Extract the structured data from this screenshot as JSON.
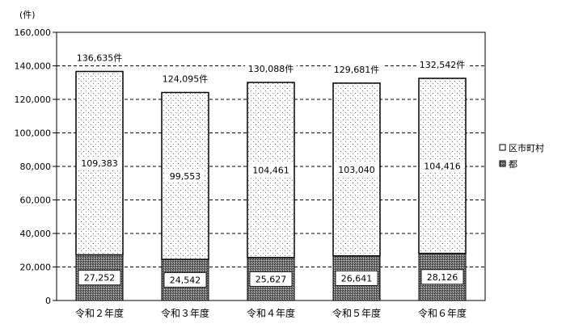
{
  "chart_data": {
    "type": "bar",
    "stacked": true,
    "y_unit": "(件)",
    "categories": [
      "令和２年度",
      "令和３年度",
      "令和４年度",
      "令和５年度",
      "令和６年度"
    ],
    "series": [
      {
        "name": "都",
        "values": [
          27252,
          24542,
          25627,
          26641,
          28126
        ],
        "labels": [
          "27,252",
          "24,542",
          "25,627",
          "26,641",
          "28,126"
        ]
      },
      {
        "name": "区市町村",
        "values": [
          109383,
          99553,
          104461,
          103040,
          104416
        ],
        "labels": [
          "109,383",
          "99,553",
          "104,461",
          "103,040",
          "104,416"
        ]
      }
    ],
    "totals": [
      136635,
      124095,
      130088,
      129681,
      132542
    ],
    "total_labels": [
      "136,635件",
      "124,095件",
      "130,088件",
      "129,681件",
      "132,542件"
    ],
    "ylim": [
      0,
      160000
    ],
    "yticks": [
      0,
      20000,
      40000,
      60000,
      80000,
      100000,
      120000,
      140000,
      160000
    ],
    "ytick_labels": [
      "0",
      "20,000",
      "40,000",
      "60,000",
      "80,000",
      "100,000",
      "120,000",
      "140,000",
      "160,000"
    ],
    "grid": "dashed horizontal",
    "legend": {
      "placement": "right",
      "entries": [
        "区市町村",
        "都"
      ]
    },
    "colors": {
      "bar_bottom": "#6f6f6f",
      "bar_top": "#ffffff",
      "grid": "#000000"
    }
  }
}
